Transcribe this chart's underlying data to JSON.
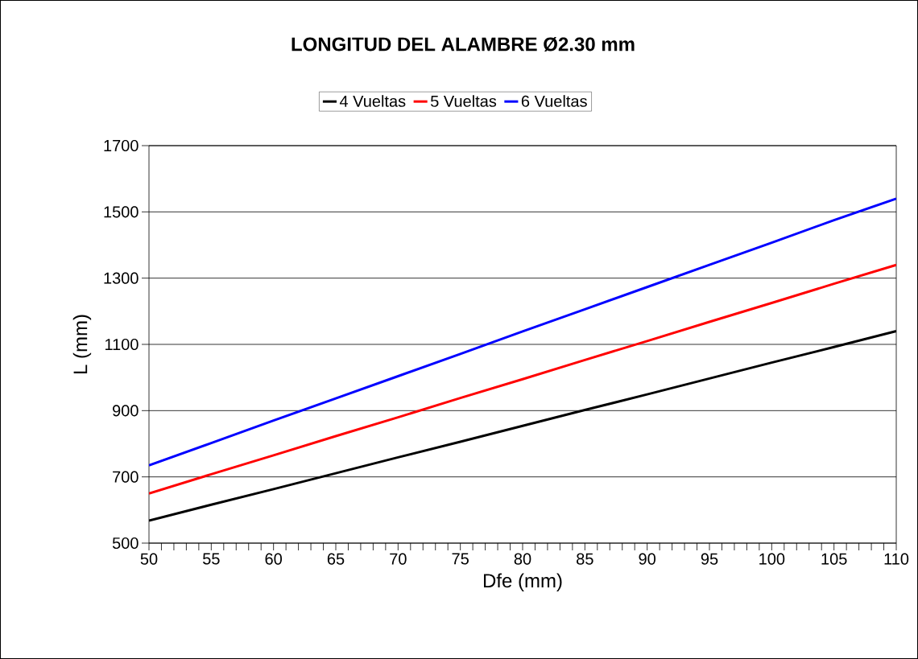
{
  "chart_data": {
    "type": "line",
    "title": "LONGITUD DEL ALAMBRE  Ø2.30 mm",
    "xlabel": "Dfe (mm)",
    "ylabel": "L (mm)",
    "x": [
      50,
      55,
      60,
      65,
      70,
      75,
      80,
      85,
      90,
      95,
      100,
      105,
      110
    ],
    "series": [
      {
        "name": "4 Vueltas",
        "color": "#000000",
        "values": [
          568,
          616,
          663,
          711,
          759,
          806,
          854,
          902,
          949,
          997,
          1045,
          1092,
          1140
        ]
      },
      {
        "name": "5 Vueltas",
        "color": "#ff0000",
        "values": [
          650,
          708,
          765,
          823,
          880,
          938,
          995,
          1053,
          1110,
          1168,
          1225,
          1283,
          1340
        ]
      },
      {
        "name": "6 Vueltas",
        "color": "#0000ff",
        "values": [
          735,
          802,
          870,
          937,
          1004,
          1071,
          1139,
          1206,
          1273,
          1340,
          1407,
          1475,
          1540
        ]
      }
    ],
    "xlim": [
      50,
      110
    ],
    "ylim": [
      500,
      1700
    ],
    "xticks": [
      50,
      {
        "value": 51,
        "label": null
      },
      {
        "value": 52,
        "label": null
      },
      {
        "value": 53,
        "label": null
      },
      {
        "value": 54,
        "label": null
      },
      55,
      {
        "value": 56,
        "label": null
      },
      {
        "value": 57,
        "label": null
      },
      {
        "value": 58,
        "label": null
      },
      {
        "value": 59,
        "label": null
      },
      60,
      {
        "value": 61,
        "label": null
      },
      {
        "value": 62,
        "label": null
      },
      {
        "value": 63,
        "label": null
      },
      {
        "value": 64,
        "label": null
      },
      65,
      {
        "value": 66,
        "label": null
      },
      {
        "value": 67,
        "label": null
      },
      {
        "value": 68,
        "label": null
      },
      {
        "value": 69,
        "label": null
      },
      70,
      {
        "value": 71,
        "label": null
      },
      {
        "value": 72,
        "label": null
      },
      {
        "value": 73,
        "label": null
      },
      {
        "value": 74,
        "label": null
      },
      75,
      {
        "value": 76,
        "label": null
      },
      {
        "value": 77,
        "label": null
      },
      {
        "value": 78,
        "label": null
      },
      {
        "value": 79,
        "label": null
      },
      80,
      {
        "value": 81,
        "label": null
      },
      {
        "value": 82,
        "label": null
      },
      {
        "value": 83,
        "label": null
      },
      {
        "value": 84,
        "label": null
      },
      85,
      {
        "value": 86,
        "label": null
      },
      {
        "value": 87,
        "label": null
      },
      {
        "value": 88,
        "label": null
      },
      {
        "value": 89,
        "label": null
      },
      90,
      {
        "value": 91,
        "label": null
      },
      {
        "value": 92,
        "label": null
      },
      {
        "value": 93,
        "label": null
      },
      {
        "value": 94,
        "label": null
      },
      95,
      {
        "value": 96,
        "label": null
      },
      {
        "value": 97,
        "label": null
      },
      {
        "value": 98,
        "label": null
      },
      {
        "value": 99,
        "label": null
      },
      100,
      {
        "value": 101,
        "label": null
      },
      {
        "value": 102,
        "label": null
      },
      {
        "value": 103,
        "label": null
      },
      {
        "value": 104,
        "label": null
      },
      105,
      {
        "value": 106,
        "label": null
      },
      {
        "value": 107,
        "label": null
      },
      {
        "value": 108,
        "label": null
      },
      {
        "value": 109,
        "label": null
      },
      110
    ],
    "yticks": [
      500,
      700,
      900,
      1100,
      1300,
      1500,
      1700
    ],
    "grid": "y",
    "legend": "top",
    "marker": "none",
    "line_style": "solid"
  }
}
